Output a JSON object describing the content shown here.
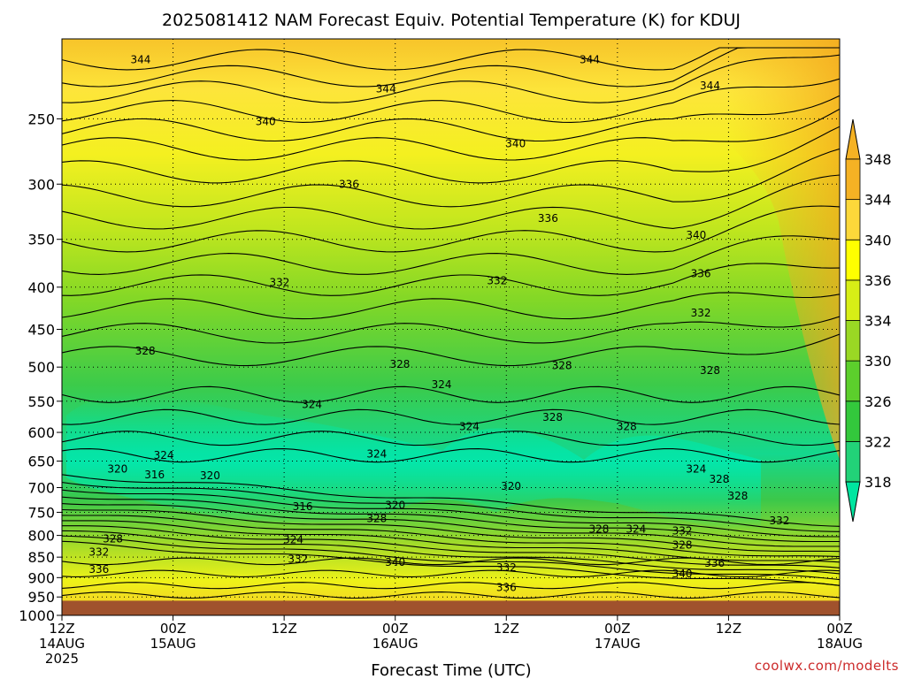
{
  "chart_data": {
    "type": "heatmap",
    "title": "2025081412 NAM Forecast Equiv. Potential Temperature (K) for KDUJ",
    "xlabel": "Forecast Time (UTC)",
    "credit": "coolwx.com/modelts",
    "x_ticks": [
      {
        "hours": 0,
        "label": "12Z",
        "date": "14AUG",
        "year": "2025"
      },
      {
        "hours": 12,
        "label": "00Z",
        "date": "15AUG",
        "year": ""
      },
      {
        "hours": 24,
        "label": "12Z",
        "date": "",
        "year": ""
      },
      {
        "hours": 36,
        "label": "00Z",
        "date": "16AUG",
        "year": ""
      },
      {
        "hours": 48,
        "label": "12Z",
        "date": "",
        "year": ""
      },
      {
        "hours": 60,
        "label": "00Z",
        "date": "17AUG",
        "year": ""
      },
      {
        "hours": 72,
        "label": "12Z",
        "date": "",
        "year": ""
      },
      {
        "hours": 84,
        "label": "00Z",
        "date": "18AUG",
        "year": ""
      }
    ],
    "xlim": [
      0,
      84
    ],
    "y_ticks": [
      250,
      300,
      350,
      400,
      450,
      500,
      550,
      600,
      650,
      700,
      750,
      800,
      850,
      900,
      950,
      1000
    ],
    "ylim": [
      200,
      1000
    ],
    "y_scale": "log-pressure (inverted)",
    "grid": true,
    "colorbar": {
      "levels": [
        318,
        322,
        326,
        330,
        334,
        336,
        340,
        344,
        348
      ],
      "colors": [
        "#00e5a0",
        "#22d278",
        "#33c83c",
        "#5ccf2c",
        "#9ad824",
        "#d7ee16",
        "#ffff00",
        "#fcd83a",
        "#f5b224"
      ]
    },
    "ground_color": "#a0522d",
    "ground_pressure": 960,
    "contour_labels": [
      {
        "v": "344",
        "t": 8.5,
        "p": 212
      },
      {
        "v": "344",
        "t": 57,
        "p": 212
      },
      {
        "v": "344",
        "t": 35,
        "p": 230
      },
      {
        "v": "344",
        "t": 70,
        "p": 228
      },
      {
        "v": "340",
        "t": 22,
        "p": 252
      },
      {
        "v": "340",
        "t": 49,
        "p": 268
      },
      {
        "v": "336",
        "t": 31,
        "p": 300
      },
      {
        "v": "336",
        "t": 52.5,
        "p": 330
      },
      {
        "v": "340",
        "t": 68.5,
        "p": 346
      },
      {
        "v": "336",
        "t": 69,
        "p": 385
      },
      {
        "v": "332",
        "t": 23.5,
        "p": 395
      },
      {
        "v": "332",
        "t": 47,
        "p": 393
      },
      {
        "v": "332",
        "t": 69,
        "p": 430
      },
      {
        "v": "328",
        "t": 9,
        "p": 478
      },
      {
        "v": "328",
        "t": 36.5,
        "p": 496
      },
      {
        "v": "328",
        "t": 54,
        "p": 498
      },
      {
        "v": "328",
        "t": 70,
        "p": 505
      },
      {
        "v": "324",
        "t": 41,
        "p": 525
      },
      {
        "v": "324",
        "t": 27,
        "p": 555
      },
      {
        "v": "328",
        "t": 53,
        "p": 575
      },
      {
        "v": "324",
        "t": 44,
        "p": 590
      },
      {
        "v": "328",
        "t": 61,
        "p": 590
      },
      {
        "v": "324",
        "t": 11,
        "p": 640
      },
      {
        "v": "324",
        "t": 34,
        "p": 637
      },
      {
        "v": "320",
        "t": 6,
        "p": 665
      },
      {
        "v": "316",
        "t": 10,
        "p": 675
      },
      {
        "v": "320",
        "t": 16,
        "p": 677
      },
      {
        "v": "324",
        "t": 68.5,
        "p": 665
      },
      {
        "v": "328",
        "t": 71,
        "p": 684
      },
      {
        "v": "320",
        "t": 48.5,
        "p": 697
      },
      {
        "v": "328",
        "t": 73,
        "p": 717
      },
      {
        "v": "320",
        "t": 36,
        "p": 735
      },
      {
        "v": "316",
        "t": 26,
        "p": 738
      },
      {
        "v": "328",
        "t": 34,
        "p": 763
      },
      {
        "v": "332",
        "t": 77.5,
        "p": 768
      },
      {
        "v": "328",
        "t": 58,
        "p": 786
      },
      {
        "v": "324",
        "t": 62,
        "p": 786
      },
      {
        "v": "332",
        "t": 67,
        "p": 790
      },
      {
        "v": "328",
        "t": 5.5,
        "p": 808
      },
      {
        "v": "324",
        "t": 25,
        "p": 810
      },
      {
        "v": "332",
        "t": 4,
        "p": 838
      },
      {
        "v": "332",
        "t": 25.5,
        "p": 855
      },
      {
        "v": "340",
        "t": 36,
        "p": 862
      },
      {
        "v": "328",
        "t": 67,
        "p": 822
      },
      {
        "v": "336",
        "t": 70.5,
        "p": 865
      },
      {
        "v": "336",
        "t": 4,
        "p": 880
      },
      {
        "v": "332",
        "t": 48,
        "p": 875
      },
      {
        "v": "340",
        "t": 67,
        "p": 890
      },
      {
        "v": "336",
        "t": 48,
        "p": 925
      }
    ]
  }
}
